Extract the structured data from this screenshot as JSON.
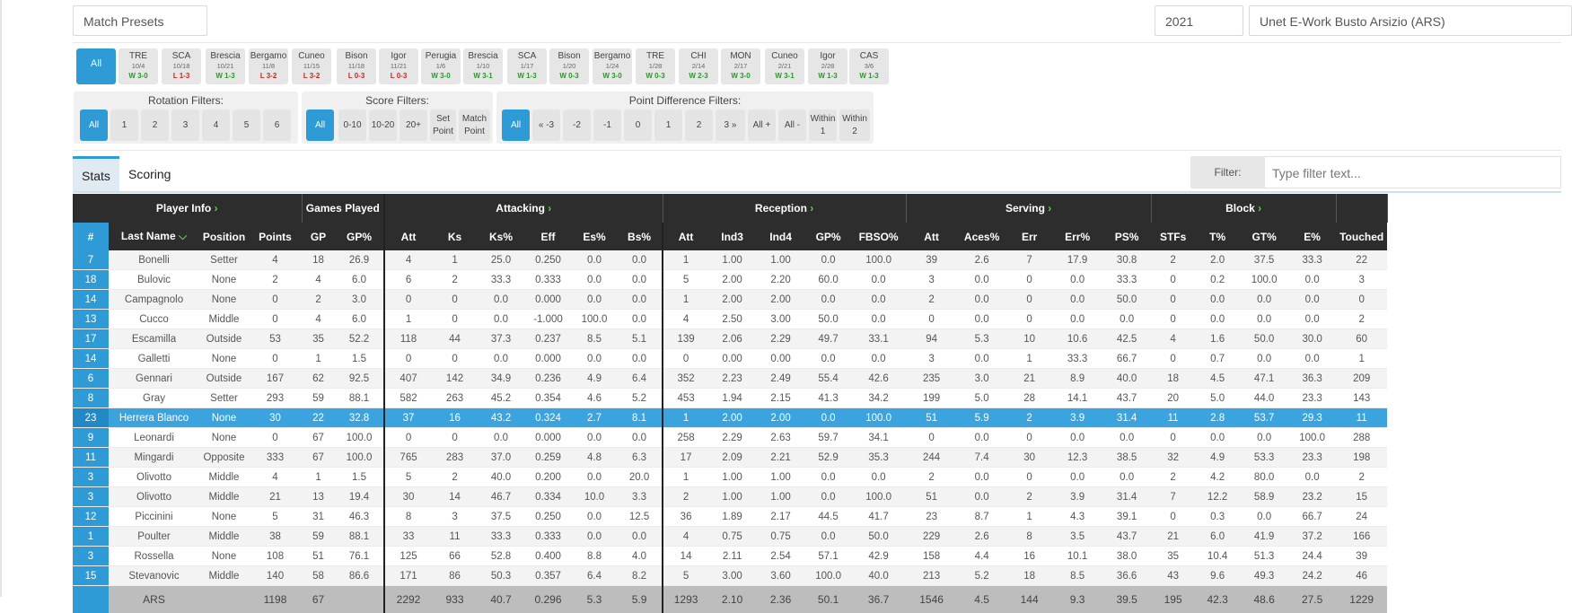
{
  "top": {
    "match_presets": "Match Presets",
    "year": "2021",
    "team": "Unet E-Work Busto Arsizio (ARS)"
  },
  "matches": [
    {
      "opp": "All",
      "date": "",
      "result": "",
      "outcome": "all"
    },
    {
      "opp": "TRE",
      "date": "10/4",
      "result": "W 3-0",
      "outcome": "win"
    },
    {
      "opp": "SCA",
      "date": "10/18",
      "result": "L 1-3",
      "outcome": "loss"
    },
    {
      "opp": "Brescia",
      "date": "10/21",
      "result": "W 1-3",
      "outcome": "win"
    },
    {
      "opp": "Bergamo",
      "date": "11/8",
      "result": "L 3-2",
      "outcome": "loss"
    },
    {
      "opp": "Cuneo",
      "date": "11/15",
      "result": "L 3-2",
      "outcome": "loss"
    },
    {
      "opp": "Bison",
      "date": "11/18",
      "result": "L 0-3",
      "outcome": "loss"
    },
    {
      "opp": "Igor",
      "date": "11/21",
      "result": "L 0-3",
      "outcome": "loss"
    },
    {
      "opp": "Perugia",
      "date": "1/6",
      "result": "W 3-0",
      "outcome": "win"
    },
    {
      "opp": "Brescia",
      "date": "1/10",
      "result": "W 3-1",
      "outcome": "win"
    },
    {
      "opp": "SCA",
      "date": "1/17",
      "result": "W 1-3",
      "outcome": "win"
    },
    {
      "opp": "Bison",
      "date": "1/20",
      "result": "W 0-3",
      "outcome": "win"
    },
    {
      "opp": "Bergamo",
      "date": "1/24",
      "result": "W 3-0",
      "outcome": "win"
    },
    {
      "opp": "TRE",
      "date": "1/28",
      "result": "W 0-3",
      "outcome": "win"
    },
    {
      "opp": "CHI",
      "date": "2/14",
      "result": "W 2-3",
      "outcome": "win"
    },
    {
      "opp": "MON",
      "date": "2/17",
      "result": "W 3-0",
      "outcome": "win"
    },
    {
      "opp": "Cuneo",
      "date": "2/21",
      "result": "W 3-1",
      "outcome": "win"
    },
    {
      "opp": "Igor",
      "date": "2/28",
      "result": "W 1-3",
      "outcome": "win"
    },
    {
      "opp": "CAS",
      "date": "3/6",
      "result": "W 1-3",
      "outcome": "win"
    }
  ],
  "filters": {
    "rotation": {
      "title": "Rotation Filters:",
      "options": [
        "All",
        "1",
        "2",
        "3",
        "4",
        "5",
        "6"
      ]
    },
    "score": {
      "title": "Score Filters:",
      "options": [
        "All",
        "0-10",
        "10-20",
        "20+",
        "Set Point",
        "Match Point"
      ]
    },
    "point_diff": {
      "title": "Point Difference Filters:",
      "options": [
        "All",
        "« -3",
        "-2",
        "-1",
        "0",
        "1",
        "2",
        "3 »",
        "All +",
        "All -",
        "Within 1",
        "Within 2"
      ]
    }
  },
  "tabs": [
    "Stats",
    "Scoring"
  ],
  "filter_box": {
    "label": "Filter:",
    "placeholder": "Type filter text..."
  },
  "table": {
    "groups": [
      "Player Info",
      "Games Played",
      "Attacking",
      "Reception",
      "Serving",
      "Block"
    ],
    "columns": [
      "#",
      "Last Name",
      "Position",
      "Points",
      "GP",
      "GP%",
      "Att",
      "Ks",
      "Ks%",
      "Eff",
      "Es%",
      "Bs%",
      "Att",
      "Ind3",
      "Ind4",
      "GP%",
      "FBSO%",
      "Att",
      "Aces%",
      "Err",
      "Err%",
      "PS%",
      "STFs",
      "T%",
      "GT%",
      "E%",
      "Touched"
    ],
    "rows": [
      [
        "7",
        "Bonelli",
        "Setter",
        "4",
        "18",
        "26.9",
        "4",
        "1",
        "25.0",
        "0.250",
        "0.0",
        "0.0",
        "1",
        "1.00",
        "1.00",
        "0.0",
        "100.0",
        "39",
        "2.6",
        "7",
        "17.9",
        "30.8",
        "2",
        "2.0",
        "37.5",
        "33.3",
        "22"
      ],
      [
        "18",
        "Bulovic",
        "None",
        "2",
        "4",
        "6.0",
        "6",
        "2",
        "33.3",
        "0.333",
        "0.0",
        "0.0",
        "5",
        "2.00",
        "2.20",
        "60.0",
        "0.0",
        "3",
        "0.0",
        "0",
        "0.0",
        "33.3",
        "0",
        "0.2",
        "100.0",
        "0.0",
        "3"
      ],
      [
        "14",
        "Campagnolo",
        "None",
        "0",
        "2",
        "3.0",
        "0",
        "0",
        "0.0",
        "0.000",
        "0.0",
        "0.0",
        "1",
        "2.00",
        "2.00",
        "0.0",
        "0.0",
        "2",
        "0.0",
        "0",
        "0.0",
        "50.0",
        "0",
        "0.0",
        "0.0",
        "0.0",
        "0"
      ],
      [
        "13",
        "Cucco",
        "Middle",
        "0",
        "4",
        "6.0",
        "1",
        "0",
        "0.0",
        "-1.000",
        "100.0",
        "0.0",
        "4",
        "2.50",
        "3.00",
        "50.0",
        "0.0",
        "0",
        "0.0",
        "0",
        "0.0",
        "0.0",
        "0",
        "0.0",
        "0.0",
        "0.0",
        "2"
      ],
      [
        "17",
        "Escamilla",
        "Outside",
        "53",
        "35",
        "52.2",
        "118",
        "44",
        "37.3",
        "0.237",
        "8.5",
        "5.1",
        "139",
        "2.06",
        "2.29",
        "49.7",
        "33.1",
        "94",
        "5.3",
        "10",
        "10.6",
        "42.5",
        "4",
        "1.6",
        "50.0",
        "30.0",
        "60"
      ],
      [
        "14",
        "Galletti",
        "None",
        "0",
        "1",
        "1.5",
        "0",
        "0",
        "0.0",
        "0.000",
        "0.0",
        "0.0",
        "0",
        "0.00",
        "0.00",
        "0.0",
        "0.0",
        "3",
        "0.0",
        "1",
        "33.3",
        "66.7",
        "0",
        "0.7",
        "0.0",
        "0.0",
        "1"
      ],
      [
        "6",
        "Gennari",
        "Outside",
        "167",
        "62",
        "92.5",
        "407",
        "142",
        "34.9",
        "0.236",
        "4.9",
        "6.4",
        "352",
        "2.23",
        "2.49",
        "55.4",
        "42.6",
        "235",
        "3.0",
        "21",
        "8.9",
        "40.0",
        "18",
        "4.5",
        "47.1",
        "36.3",
        "209"
      ],
      [
        "8",
        "Gray",
        "Setter",
        "293",
        "59",
        "88.1",
        "582",
        "263",
        "45.2",
        "0.354",
        "4.6",
        "5.2",
        "453",
        "1.94",
        "2.15",
        "41.3",
        "34.2",
        "199",
        "5.0",
        "28",
        "14.1",
        "43.7",
        "20",
        "5.0",
        "44.0",
        "23.3",
        "143"
      ],
      [
        "23",
        "Herrera Blanco",
        "None",
        "30",
        "22",
        "32.8",
        "37",
        "16",
        "43.2",
        "0.324",
        "2.7",
        "8.1",
        "1",
        "2.00",
        "2.00",
        "0.0",
        "100.0",
        "51",
        "5.9",
        "2",
        "3.9",
        "31.4",
        "11",
        "2.8",
        "53.7",
        "29.3",
        "11"
      ],
      [
        "9",
        "Leonardi",
        "None",
        "0",
        "67",
        "100.0",
        "0",
        "0",
        "0.0",
        "0.000",
        "0.0",
        "0.0",
        "258",
        "2.29",
        "2.63",
        "59.7",
        "34.1",
        "0",
        "0.0",
        "0",
        "0.0",
        "0.0",
        "0",
        "0.0",
        "0.0",
        "100.0",
        "288"
      ],
      [
        "11",
        "Mingardi",
        "Opposite",
        "333",
        "67",
        "100.0",
        "765",
        "283",
        "37.0",
        "0.259",
        "4.8",
        "6.3",
        "17",
        "2.09",
        "2.21",
        "52.9",
        "35.3",
        "244",
        "7.4",
        "30",
        "12.3",
        "38.5",
        "32",
        "4.9",
        "53.3",
        "23.3",
        "198"
      ],
      [
        "3",
        "Olivotto",
        "Middle",
        "4",
        "1",
        "1.5",
        "5",
        "2",
        "40.0",
        "0.200",
        "0.0",
        "20.0",
        "1",
        "1.00",
        "1.00",
        "0.0",
        "0.0",
        "2",
        "0.0",
        "0",
        "0.0",
        "0.0",
        "2",
        "4.2",
        "80.0",
        "0.0",
        "2"
      ],
      [
        "3",
        "Olivotto",
        "Middle",
        "21",
        "13",
        "19.4",
        "30",
        "14",
        "46.7",
        "0.334",
        "10.0",
        "3.3",
        "2",
        "1.00",
        "1.00",
        "0.0",
        "100.0",
        "51",
        "0.0",
        "2",
        "3.9",
        "31.4",
        "7",
        "12.2",
        "58.9",
        "23.2",
        "15"
      ],
      [
        "12",
        "Piccinini",
        "None",
        "5",
        "31",
        "46.3",
        "8",
        "3",
        "37.5",
        "0.250",
        "0.0",
        "12.5",
        "36",
        "1.89",
        "2.17",
        "44.5",
        "41.7",
        "23",
        "8.7",
        "1",
        "4.3",
        "39.1",
        "0",
        "0.3",
        "0.0",
        "66.7",
        "24"
      ],
      [
        "1",
        "Poulter",
        "Middle",
        "38",
        "59",
        "88.1",
        "33",
        "11",
        "33.3",
        "0.333",
        "0.0",
        "0.0",
        "4",
        "0.75",
        "0.75",
        "0.0",
        "50.0",
        "229",
        "2.6",
        "8",
        "3.5",
        "43.7",
        "21",
        "6.0",
        "41.9",
        "37.2",
        "166"
      ],
      [
        "3",
        "Rossella",
        "None",
        "108",
        "51",
        "76.1",
        "125",
        "66",
        "52.8",
        "0.400",
        "8.8",
        "4.0",
        "14",
        "2.11",
        "2.54",
        "57.1",
        "42.9",
        "158",
        "4.4",
        "16",
        "10.1",
        "38.0",
        "35",
        "10.4",
        "51.3",
        "24.4",
        "39"
      ],
      [
        "15",
        "Stevanovic",
        "Middle",
        "140",
        "58",
        "86.6",
        "171",
        "86",
        "50.3",
        "0.357",
        "6.4",
        "8.2",
        "5",
        "3.00",
        "3.60",
        "100.0",
        "40.0",
        "213",
        "5.2",
        "18",
        "8.5",
        "36.6",
        "43",
        "9.6",
        "49.3",
        "24.2",
        "46"
      ]
    ],
    "selected_row": 8,
    "totals": [
      "",
      "ARS",
      "",
      "1198",
      "67",
      "",
      "2292",
      "933",
      "40.7",
      "0.296",
      "5.3",
      "5.9",
      "1293",
      "2.10",
      "2.36",
      "50.1",
      "36.7",
      "1546",
      "4.5",
      "144",
      "9.3",
      "39.5",
      "195",
      "42.3",
      "48.6",
      "27.5",
      "1229"
    ]
  }
}
